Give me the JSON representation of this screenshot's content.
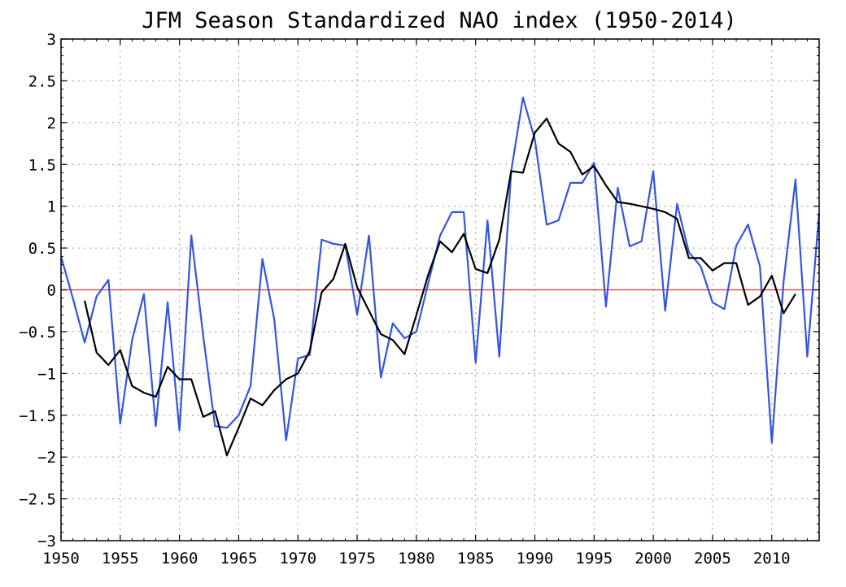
{
  "chart_data": {
    "type": "line",
    "title": "JFM Season Standardized NAO index (1950-2014)",
    "xlabel": "",
    "ylabel": "",
    "xlim": [
      1950,
      2014
    ],
    "ylim": [
      -3,
      3
    ],
    "x_ticks": [
      1950,
      1955,
      1960,
      1965,
      1970,
      1975,
      1980,
      1985,
      1990,
      1995,
      2000,
      2005,
      2010
    ],
    "y_ticks": [
      -3,
      -2.5,
      -2,
      -1.5,
      -1,
      -0.5,
      0,
      0.5,
      1,
      1.5,
      2,
      2.5,
      3
    ],
    "grid": true,
    "zero_line_color": "#e03030",
    "series": [
      {
        "color": "#3355e0",
        "x": [
          1950,
          1951,
          1952,
          1953,
          1954,
          1955,
          1956,
          1957,
          1958,
          1959,
          1960,
          1961,
          1962,
          1963,
          1964,
          1965,
          1966,
          1967,
          1968,
          1969,
          1970,
          1971,
          1972,
          1973,
          1974,
          1975,
          1976,
          1977,
          1978,
          1979,
          1980,
          1981,
          1982,
          1983,
          1984,
          1985,
          1986,
          1987,
          1988,
          1989,
          1990,
          1991,
          1992,
          1993,
          1994,
          1995,
          1996,
          1997,
          1998,
          1999,
          2000,
          2001,
          2002,
          2003,
          2004,
          2005,
          2006,
          2007,
          2008,
          2009,
          2010,
          2011,
          2012,
          2013,
          2014
        ],
        "values": [
          0.4,
          -0.1,
          -0.63,
          -0.08,
          0.12,
          -1.6,
          -0.6,
          -0.05,
          -1.63,
          -0.15,
          -1.68,
          0.65,
          -0.55,
          -1.63,
          -1.65,
          -1.5,
          -1.15,
          0.37,
          -0.35,
          -1.8,
          -0.82,
          -0.78,
          0.6,
          0.55,
          0.53,
          -0.3,
          0.65,
          -1.05,
          -0.4,
          -0.58,
          -0.5,
          0.08,
          0.65,
          0.93,
          0.93,
          -0.87,
          0.83,
          -0.8,
          1.42,
          2.3,
          1.8,
          0.78,
          0.83,
          1.28,
          1.28,
          1.52,
          -0.2,
          1.22,
          0.52,
          0.58,
          1.42,
          -0.25,
          1.03,
          0.45,
          0.28,
          -0.15,
          -0.23,
          0.53,
          0.78,
          0.28,
          -1.83,
          0.1,
          1.32,
          -0.8,
          0.92
        ]
      },
      {
        "color": "#000000",
        "x": [
          1952,
          1953,
          1954,
          1955,
          1956,
          1957,
          1958,
          1959,
          1960,
          1961,
          1962,
          1963,
          1964,
          1965,
          1966,
          1967,
          1968,
          1969,
          1970,
          1971,
          1972,
          1973,
          1974,
          1975,
          1976,
          1977,
          1978,
          1979,
          1980,
          1981,
          1982,
          1983,
          1984,
          1985,
          1986,
          1987,
          1988,
          1989,
          1990,
          1991,
          1992,
          1993,
          1994,
          1995,
          1996,
          1997,
          1998,
          1999,
          2000,
          2001,
          2002,
          2003,
          2004,
          2005,
          2006,
          2007,
          2008,
          2009,
          2010,
          2011,
          2012
        ],
        "values": [
          -0.13,
          -0.75,
          -0.9,
          -0.72,
          -1.15,
          -1.23,
          -1.28,
          -0.92,
          -1.07,
          -1.07,
          -1.52,
          -1.45,
          -1.98,
          -1.65,
          -1.3,
          -1.38,
          -1.2,
          -1.07,
          -1.0,
          -0.73,
          -0.03,
          0.13,
          0.55,
          0.03,
          -0.25,
          -0.53,
          -0.6,
          -0.77,
          -0.3,
          0.18,
          0.58,
          0.45,
          0.67,
          0.25,
          0.2,
          0.6,
          1.42,
          1.4,
          1.88,
          2.05,
          1.75,
          1.65,
          1.38,
          1.48,
          1.25,
          1.05,
          1.03,
          1.0,
          0.97,
          0.93,
          0.85,
          0.38,
          0.38,
          0.23,
          0.32,
          0.32,
          -0.18,
          -0.08,
          0.17,
          -0.28,
          -0.05
        ]
      }
    ]
  }
}
